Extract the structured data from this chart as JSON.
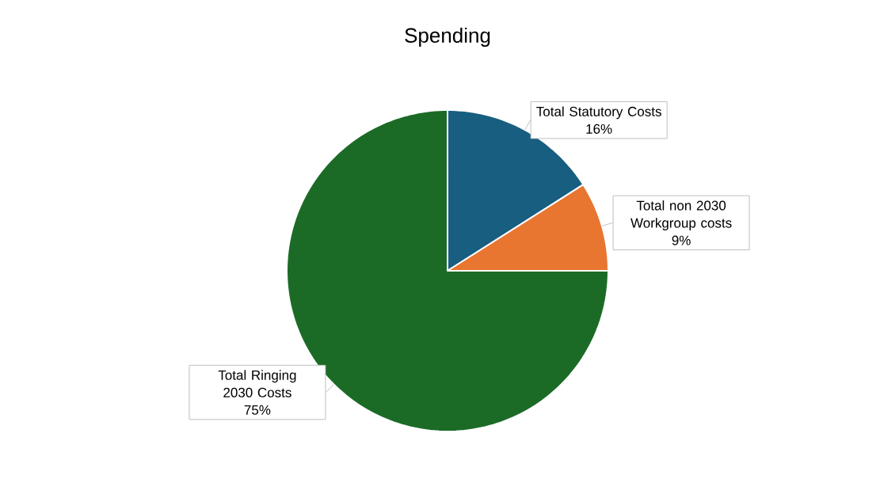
{
  "chart_data": {
    "type": "pie",
    "title": "Spending",
    "categories": [
      "Total Statutory Costs",
      "Total non 2030 Workgroup costs",
      "Total Ringing 2030 Costs"
    ],
    "values": [
      16,
      9,
      75
    ],
    "value_labels": [
      "16%",
      "9%",
      "75%"
    ],
    "colors": [
      "#185e80",
      "#e87530",
      "#1b6b27"
    ]
  }
}
